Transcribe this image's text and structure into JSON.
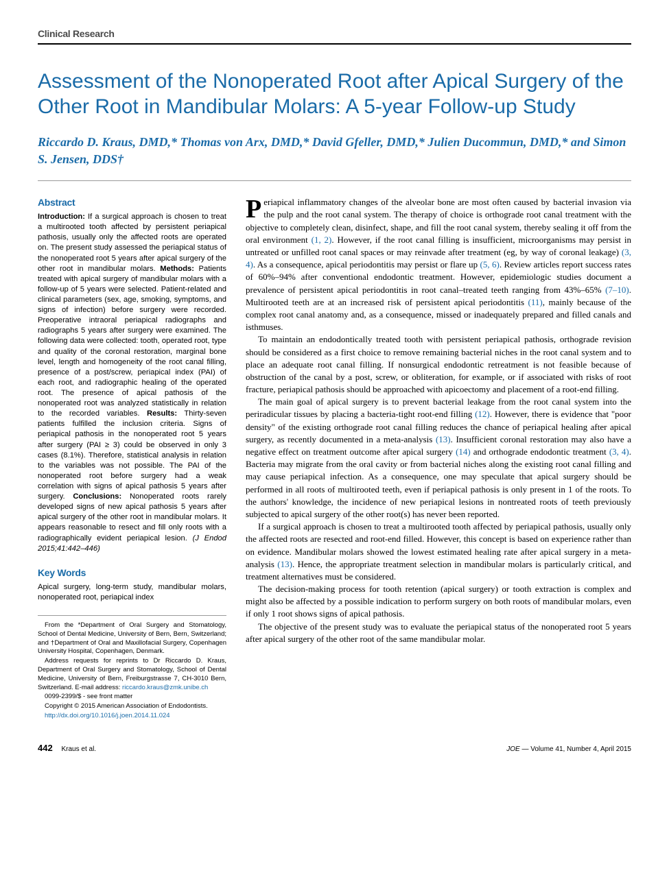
{
  "section_tag": "Clinical Research",
  "title": "Assessment of the Nonoperated Root after Apical Surgery of the Other Root in Mandibular Molars: A 5-year Follow-up Study",
  "authors_line": "Riccardo D. Kraus, DMD,* Thomas von Arx, DMD,* David Gfeller, DMD,* Julien Ducommun, DMD,* and Simon S. Jensen, DDS†",
  "abstract": {
    "heading": "Abstract",
    "intro_label": "Introduction:",
    "intro": " If a surgical approach is chosen to treat a multirooted tooth affected by persistent periapical pathosis, usually only the affected roots are operated on. The present study assessed the periapical status of the nonoperated root 5 years after apical surgery of the other root in mandibular molars. ",
    "methods_label": "Methods:",
    "methods": " Patients treated with apical surgery of mandibular molars with a follow-up of 5 years were selected. Patient-related and clinical parameters (sex, age, smoking, symptoms, and signs of infection) before surgery were recorded. Preoperative intraoral periapical radiographs and radiographs 5 years after surgery were examined. The following data were collected: tooth, operated root, type and quality of the coronal restoration, marginal bone level, length and homogeneity of the root canal filling, presence of a post/screw, periapical index (PAI) of each root, and radiographic healing of the operated root. The presence of apical pathosis of the nonoperated root was analyzed statistically in relation to the recorded variables. ",
    "results_label": "Results:",
    "results": " Thirty-seven patients fulfilled the inclusion criteria. Signs of periapical pathosis in the nonoperated root 5 years after surgery (PAI ≥ 3) could be observed in only 3 cases (8.1%). Therefore, statistical analysis in relation to the variables was not possible. The PAI of the nonoperated root before surgery had a weak correlation with signs of apical pathosis 5 years after surgery. ",
    "conclusions_label": "Conclusions:",
    "conclusions": " Nonoperated roots rarely developed signs of new apical pathosis 5 years after apical surgery of the other root in mandibular molars. It appears reasonable to resect and fill only roots with a radiographically evident periapical lesion. ",
    "citation": "(J Endod 2015;41:442–446)"
  },
  "keywords": {
    "heading": "Key Words",
    "text": "Apical surgery, long-term study, mandibular molars, nonoperated root, periapical index"
  },
  "affiliations": {
    "from": "From the *Department of Oral Surgery and Stomatology, School of Dental Medicine, University of Bern, Bern, Switzerland; and †Department of Oral and Maxillofacial Surgery, Copenhagen University Hospital, Copenhagen, Denmark.",
    "address": "Address requests for reprints to Dr Riccardo D. Kraus, Department of Oral Surgery and Stomatology, School of Dental Medicine, University of Bern, Freiburgstrasse 7, CH-3010 Bern, Switzerland. E-mail address: ",
    "email": "riccardo.kraus@zmk.unibe.ch",
    "issn": "0099-2399/$ - see front matter",
    "copyright": "Copyright © 2015 American Association of Endodontists.",
    "doi": "http://dx.doi.org/10.1016/j.joen.2014.11.024"
  },
  "body": {
    "p1_dropcap": "P",
    "p1": "eriapical inflammatory changes of the alveolar bone are most often caused by bacterial invasion via the pulp and the root canal system. The therapy of choice is orthograde root canal treatment with the objective to completely clean, disinfect, shape, and fill the root canal system, thereby sealing it off from the oral environment ",
    "p1r1": "(1, 2)",
    "p1b": ". However, if the root canal filling is insufficient, microorganisms may persist in untreated or unfilled root canal spaces or may reinvade after treatment (eg, by way of coronal leakage) ",
    "p1r2": "(3, 4)",
    "p1c": ". As a consequence, apical periodontitis may persist or flare up ",
    "p1r3": "(5, 6)",
    "p1d": ". Review articles report success rates of 60%–94% after conventional endodontic treatment. However, epidemiologic studies document a prevalence of persistent apical periodontitis in root canal–treated teeth ranging from 43%–65% ",
    "p1r4": "(7–10)",
    "p1e": ". Multirooted teeth are at an increased risk of persistent apical periodontitis ",
    "p1r5": "(11)",
    "p1f": ", mainly because of the complex root canal anatomy and, as a consequence, missed or inadequately prepared and filled canals and isthmuses.",
    "p2": "To maintain an endodontically treated tooth with persistent periapical pathosis, orthograde revision should be considered as a first choice to remove remaining bacterial niches in the root canal system and to place an adequate root canal filling. If nonsurgical endodontic retreatment is not feasible because of obstruction of the canal by a post, screw, or obliteration, for example, or if associated with risks of root fracture, periapical pathosis should be approached with apicoectomy and placement of a root-end filling.",
    "p3a": "The main goal of apical surgery is to prevent bacterial leakage from the root canal system into the periradicular tissues by placing a bacteria-tight root-end filling ",
    "p3r1": "(12)",
    "p3b": ". However, there is evidence that \"poor density\" of the existing orthograde root canal filling reduces the chance of periapical healing after apical surgery, as recently documented in a meta-analysis ",
    "p3r2": "(13)",
    "p3c": ". Insufficient coronal restoration may also have a negative effect on treatment outcome after apical surgery ",
    "p3r3": "(14)",
    "p3d": " and orthograde endodontic treatment ",
    "p3r4": "(3, 4)",
    "p3e": ". Bacteria may migrate from the oral cavity or from bacterial niches along the existing root canal filling and may cause periapical infection. As a consequence, one may speculate that apical surgery should be performed in all roots of multirooted teeth, even if periapical pathosis is only present in 1 of the roots. To the authors' knowledge, the incidence of new periapical lesions in nontreated roots of teeth previously subjected to apical surgery of the other root(s) has never been reported.",
    "p4a": "If a surgical approach is chosen to treat a multirooted tooth affected by periapical pathosis, usually only the affected roots are resected and root-end filled. However, this concept is based on experience rather than on evidence. Mandibular molars showed the lowest estimated healing rate after apical surgery in a meta-analysis ",
    "p4r1": "(13)",
    "p4b": ". Hence, the appropriate treatment selection in mandibular molars is particularly critical, and treatment alternatives must be considered.",
    "p5": "The decision-making process for tooth retention (apical surgery) or tooth extraction is complex and might also be affected by a possible indication to perform surgery on both roots of mandibular molars, even if only 1 root shows signs of apical pathosis.",
    "p6": "The objective of the present study was to evaluate the periapical status of the nonoperated root 5 years after apical surgery of the other root of the same mandibular molar."
  },
  "footer": {
    "page": "442",
    "authors_short": "Kraus et al.",
    "journal": "JOE",
    "issue": " — Volume 41, Number 4, April 2015"
  },
  "colors": {
    "accent": "#1a6ba8",
    "text": "#000000",
    "rule": "#999999",
    "bg": "#ffffff"
  }
}
